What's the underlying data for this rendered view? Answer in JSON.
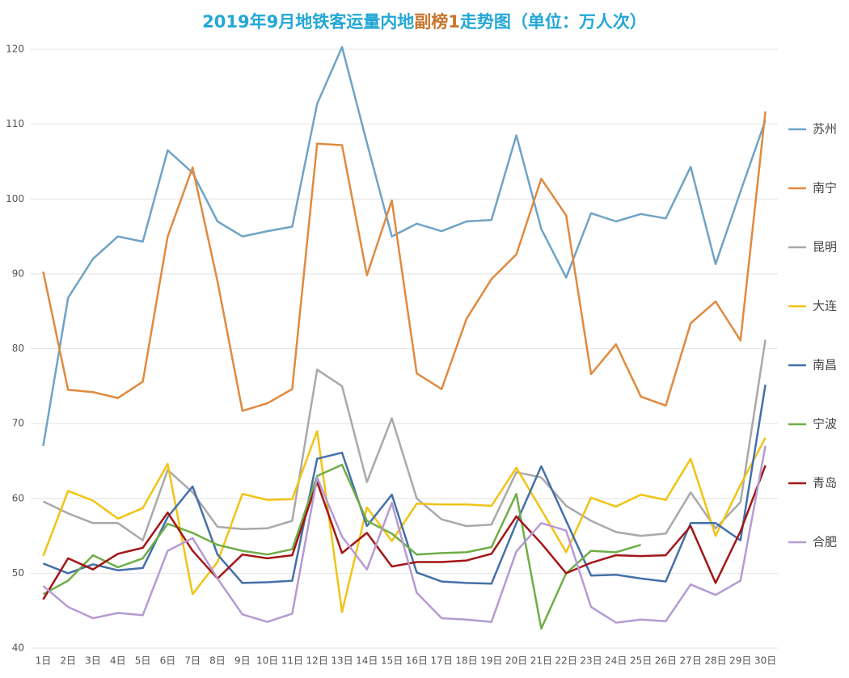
{
  "chart_data": {
    "type": "line",
    "title": [
      {
        "text": "2019年9月地铁客运量内地",
        "color": "#22a7d6"
      },
      {
        "text": "副榜1",
        "color": "#c8752c"
      },
      {
        "text": "走势图（单位：万人次）",
        "color": "#22a7d6"
      }
    ],
    "categories": [
      "1日",
      "2日",
      "3日",
      "4日",
      "5日",
      "6日",
      "7日",
      "8日",
      "9日",
      "10日",
      "11日",
      "12日",
      "13日",
      "14日",
      "15日",
      "16日",
      "17日",
      "18日",
      "19日",
      "20日",
      "21日",
      "22日",
      "23日",
      "24日",
      "25日",
      "26日",
      "27日",
      "28日",
      "29日",
      "30日"
    ],
    "series": [
      {
        "name": "苏州",
        "color": "#6fa3c6",
        "values": [
          67,
          86.8,
          92,
          95,
          94.3,
          106.5,
          103.5,
          97,
          95,
          95.7,
          96.3,
          112.7,
          120.3,
          107.5,
          95,
          96.7,
          95.7,
          97,
          97.2,
          108.5,
          96,
          89.5,
          98.1,
          97,
          98,
          97.4,
          104.3,
          91.3,
          101,
          110.5
        ]
      },
      {
        "name": "南宁",
        "color": "#e08a3f",
        "values": [
          90.3,
          74.5,
          74.2,
          73.4,
          75.6,
          95,
          104.2,
          89,
          71.7,
          72.7,
          74.6,
          107.4,
          107.2,
          89.8,
          99.8,
          76.7,
          74.6,
          84,
          89.3,
          92.6,
          102.7,
          97.8,
          76.6,
          80.6,
          73.6,
          72.4,
          83.4,
          86.3,
          81.1,
          111.7
        ]
      },
      {
        "name": "昆明",
        "color": "#a9a9a9",
        "values": [
          59.6,
          58,
          56.7,
          56.7,
          54.4,
          63.8,
          60.8,
          56.2,
          55.9,
          56,
          57,
          77.2,
          75,
          62.2,
          70.7,
          60,
          57.2,
          56.3,
          56.5,
          63.5,
          62.8,
          59,
          57,
          55.5,
          55,
          55.3,
          60.8,
          56,
          59.5,
          81.2
        ]
      },
      {
        "name": "大连",
        "color": "#f2c314",
        "values": [
          52.3,
          61,
          59.7,
          57.3,
          58.7,
          64.6,
          47.2,
          51.5,
          60.6,
          59.8,
          59.9,
          69,
          44.8,
          58.8,
          54.3,
          59.3,
          59.2,
          59.2,
          59,
          64.1,
          58.5,
          52.8,
          60.1,
          58.9,
          60.5,
          59.8,
          65.3,
          55,
          61.8,
          68.1
        ]
      },
      {
        "name": "南昌",
        "color": "#4470a8",
        "values": [
          51.3,
          50,
          51.2,
          50.4,
          50.7,
          57.5,
          61.6,
          52.5,
          48.7,
          48.8,
          49,
          65.3,
          66.1,
          56.3,
          60.5,
          50.1,
          48.9,
          48.7,
          48.6,
          56.7,
          64.3,
          57,
          49.7,
          49.8,
          49.3,
          48.9,
          56.7,
          56.7,
          54.4,
          75.2
        ]
      },
      {
        "name": "宁波",
        "color": "#6fad47",
        "values": [
          47.2,
          49,
          52.4,
          50.8,
          52,
          56.6,
          55.4,
          53.8,
          53,
          52.5,
          53.2,
          63,
          64.5,
          57,
          55.3,
          52.5,
          52.7,
          52.8,
          53.5,
          60.6,
          42.6,
          50,
          53,
          52.8,
          53.8,
          null,
          null,
          null,
          null,
          null
        ]
      },
      {
        "name": "青岛",
        "color": "#a31616",
        "values": [
          46.5,
          52,
          50.5,
          52.6,
          53.4,
          58.1,
          53,
          49.3,
          52.5,
          52,
          52.4,
          62.2,
          52.7,
          55.4,
          50.9,
          51.5,
          51.5,
          51.7,
          52.6,
          57.6,
          54,
          50,
          51.4,
          52.4,
          52.3,
          52.4,
          56.3,
          48.7,
          55.6,
          64.4
        ]
      },
      {
        "name": "合肥",
        "color": "#b59ad4",
        "values": [
          48.3,
          45.5,
          44,
          44.7,
          44.4,
          53,
          54.7,
          49.3,
          44.5,
          43.5,
          44.6,
          62.8,
          54.9,
          50.5,
          59.4,
          47.4,
          44,
          43.8,
          43.5,
          52.9,
          56.7,
          55.7,
          45.5,
          43.4,
          43.8,
          43.6,
          48.5,
          47.1,
          49,
          67
        ]
      }
    ],
    "ylim": [
      40,
      120
    ],
    "yticks": [
      40,
      50,
      60,
      70,
      80,
      90,
      100,
      110,
      120
    ],
    "grid": true,
    "legend": "right"
  }
}
